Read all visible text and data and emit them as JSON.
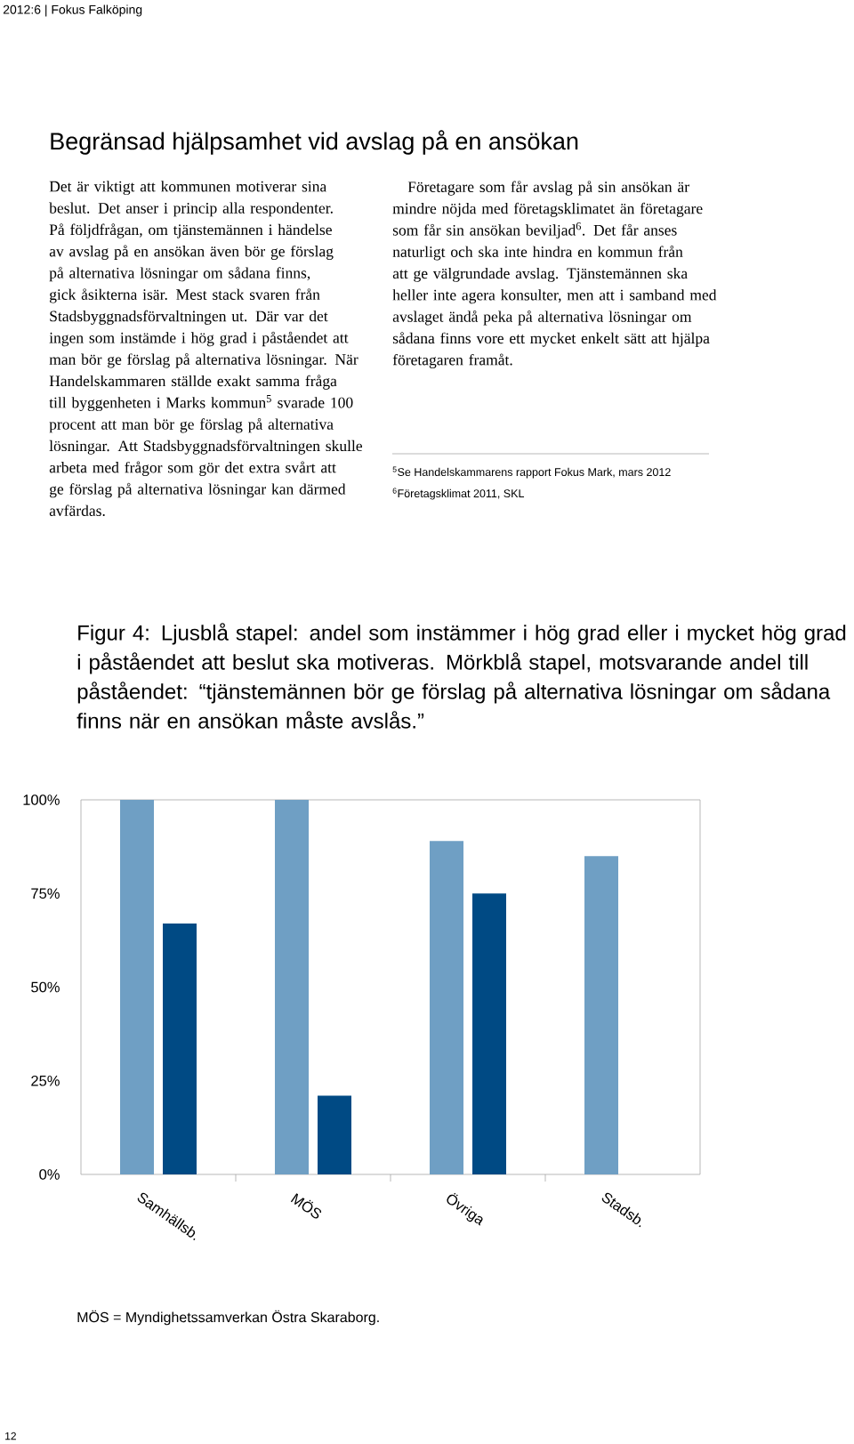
{
  "chart_data": {
    "type": "bar",
    "title": "Figur 4: Ljusblå stapel: andel som instämmer i hög grad eller i mycket hög grad i påståendet att beslut ska motiveras. Mörkblå stapel, motsvarande andel till påståendet: “tjänstemännen bör ge förslag på alternativa lösningar om sådana finns när en ansökan måste avslås.”",
    "categories": [
      "Samhällsb.",
      "MÖS",
      "Övriga",
      "Stadsb."
    ],
    "series": [
      {
        "color": "#6f9fc4",
        "values": [
          100,
          100,
          89,
          85
        ]
      },
      {
        "color": "#004a84",
        "values": [
          67,
          21,
          75,
          0
        ]
      }
    ],
    "ylim": [
      0,
      100
    ],
    "yticks": [
      {
        "value": 0,
        "label": "0%"
      },
      {
        "value": 25,
        "label": "25%"
      },
      {
        "value": 50,
        "label": "50%"
      },
      {
        "value": 75,
        "label": "75%"
      },
      {
        "value": 100,
        "label": "100%"
      }
    ],
    "annotations": [
      "2012:6 | Fokus Falköping",
      "Begränsad hjälpsamhet vid avslag på en ansökan",
      "Det är viktigt att kommunen motiverar sina beslut. Det anser i princip alla respondenter. På följdfrågan, om tjänstemännen i händelse av avslag på en ansökan även bör ge förslag på alternativa lösningar om sådana finns, gick åsikterna isär. Mest stack svaren från Stadsbyggnadsförvaltningen ut. Där var det ingen som instämde i hög grad i påståendet att man bör ge förslag på alternativa lösningar. När Handelskammaren ställde exakt samma fråga till byggenheten i Marks kommun$^{5}$ svarade 100 procent att man bör ge förslag på alternativa lösningar. Att Stadsbyggnadsförvaltningen skulle arbeta med frågor som gör det extra svårt att ge förslag på alternativa lösningar kan därmed avfärdas.",
      "Företagare som får avslag på sin ansökan är mindre nöjda med företagsklimatet än företagare som får sin ansökan beviljad$^{6}$. Det får anses naturligt och ska inte hindra en kommun från att ge välgrundade avslag. Tjänstemännen ska heller inte agera konsulter, men att i samband med avslaget ändå peka på alternativa lösningar om sådana finns vore ett mycket enkelt sätt att hjälpa företagaren framåt.",
      "$^{5}$Se Handelskammarens rapport Fokus Mark, mars 2012",
      "$^{6}$Företagsklimat 2011, SKL",
      "MÖS = Myndighetssamverkan Östra Skaraborg.",
      "12"
    ]
  }
}
